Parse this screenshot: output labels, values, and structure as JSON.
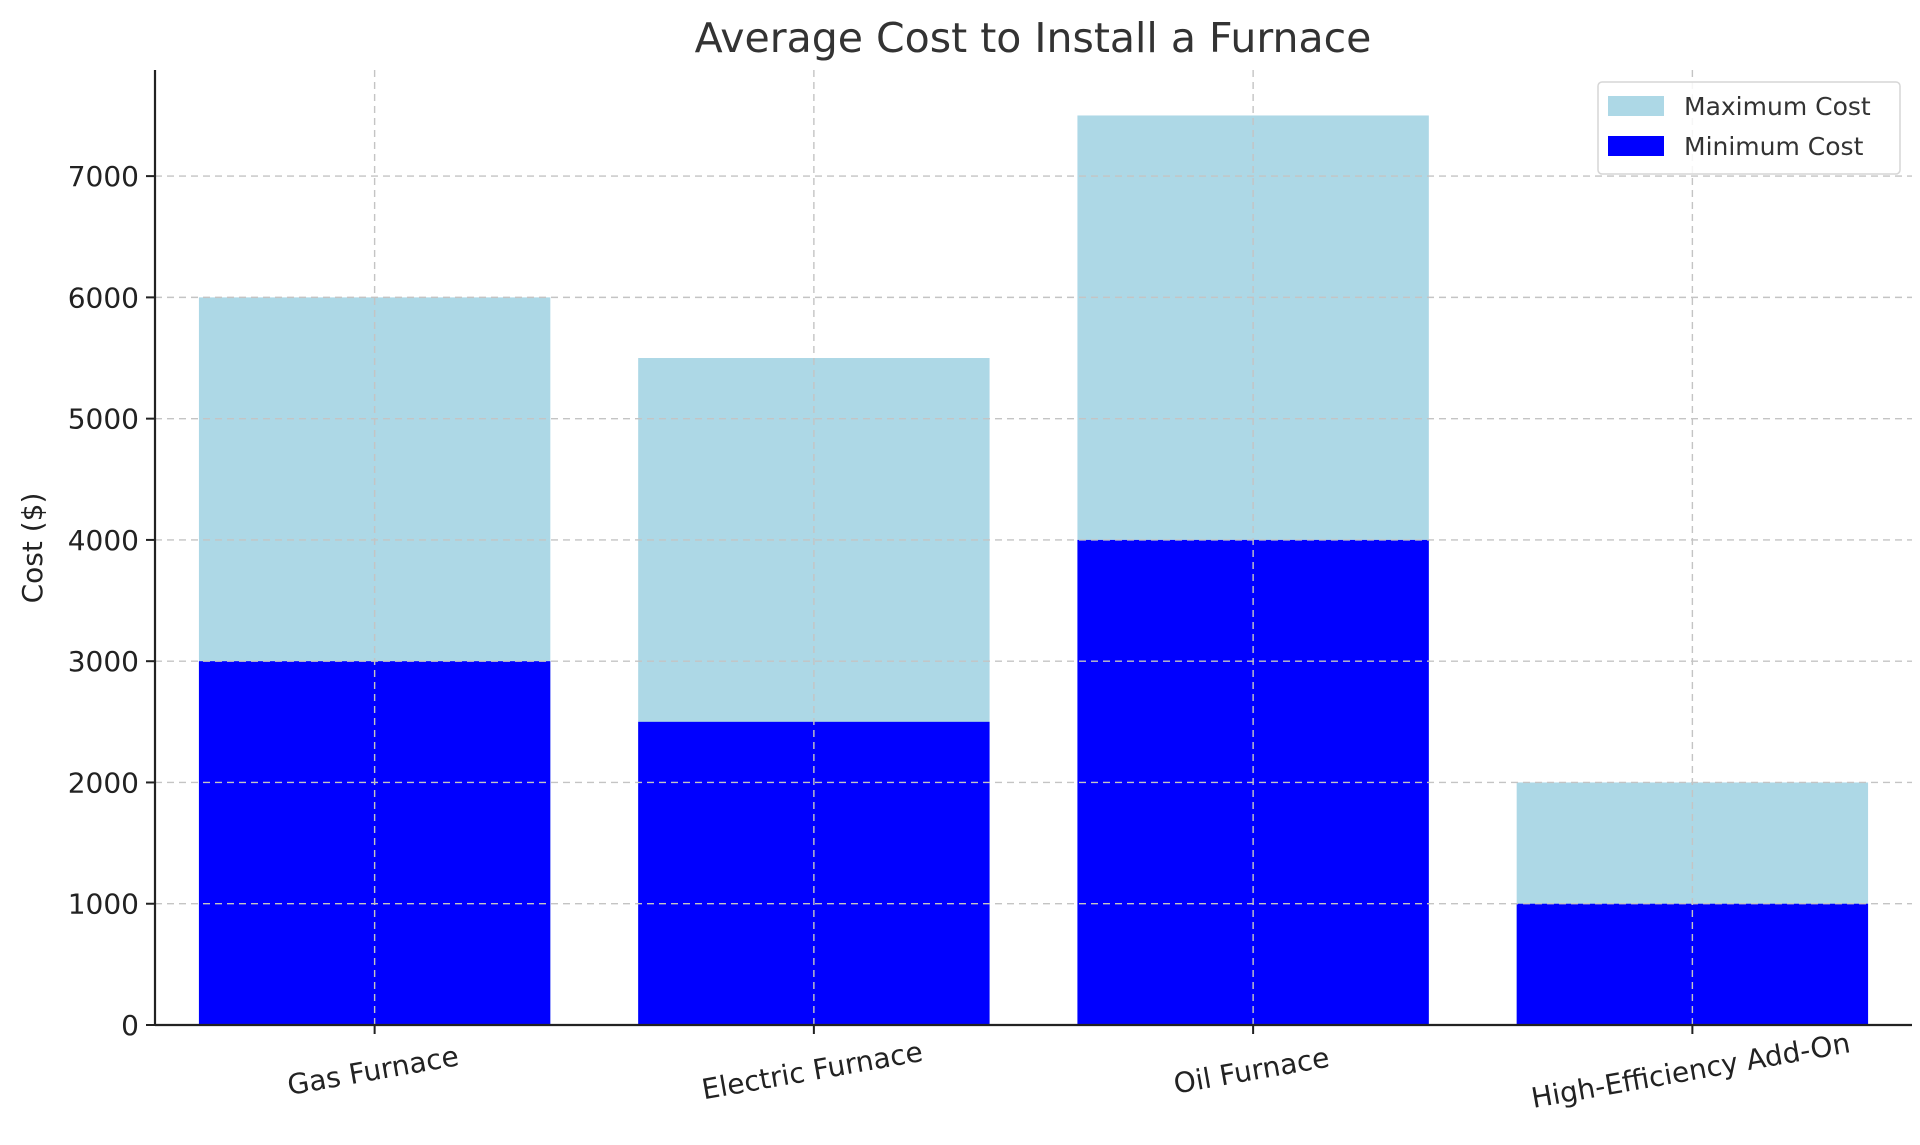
{
  "chart_data": {
    "type": "bar",
    "stacked_overlay": true,
    "title": "Average Cost to Install a Furnace",
    "xlabel": "",
    "ylabel": "Cost ($)",
    "categories": [
      "Gas Furnace",
      "Electric Furnace",
      "Oil Furnace",
      "High-Efficiency Add-On"
    ],
    "series": [
      {
        "name": "Maximum Cost",
        "values": [
          6000,
          5500,
          7500,
          2000
        ],
        "color": "#add8e6"
      },
      {
        "name": "Minimum Cost",
        "values": [
          3000,
          2500,
          4000,
          1000
        ],
        "color": "#0000ff"
      }
    ],
    "ylim": [
      0,
      7875
    ],
    "yticks": [
      0,
      1000,
      2000,
      3000,
      4000,
      5000,
      6000,
      7000
    ],
    "grid": true,
    "legend_position": "top-right",
    "xtick_rotation": -10
  }
}
